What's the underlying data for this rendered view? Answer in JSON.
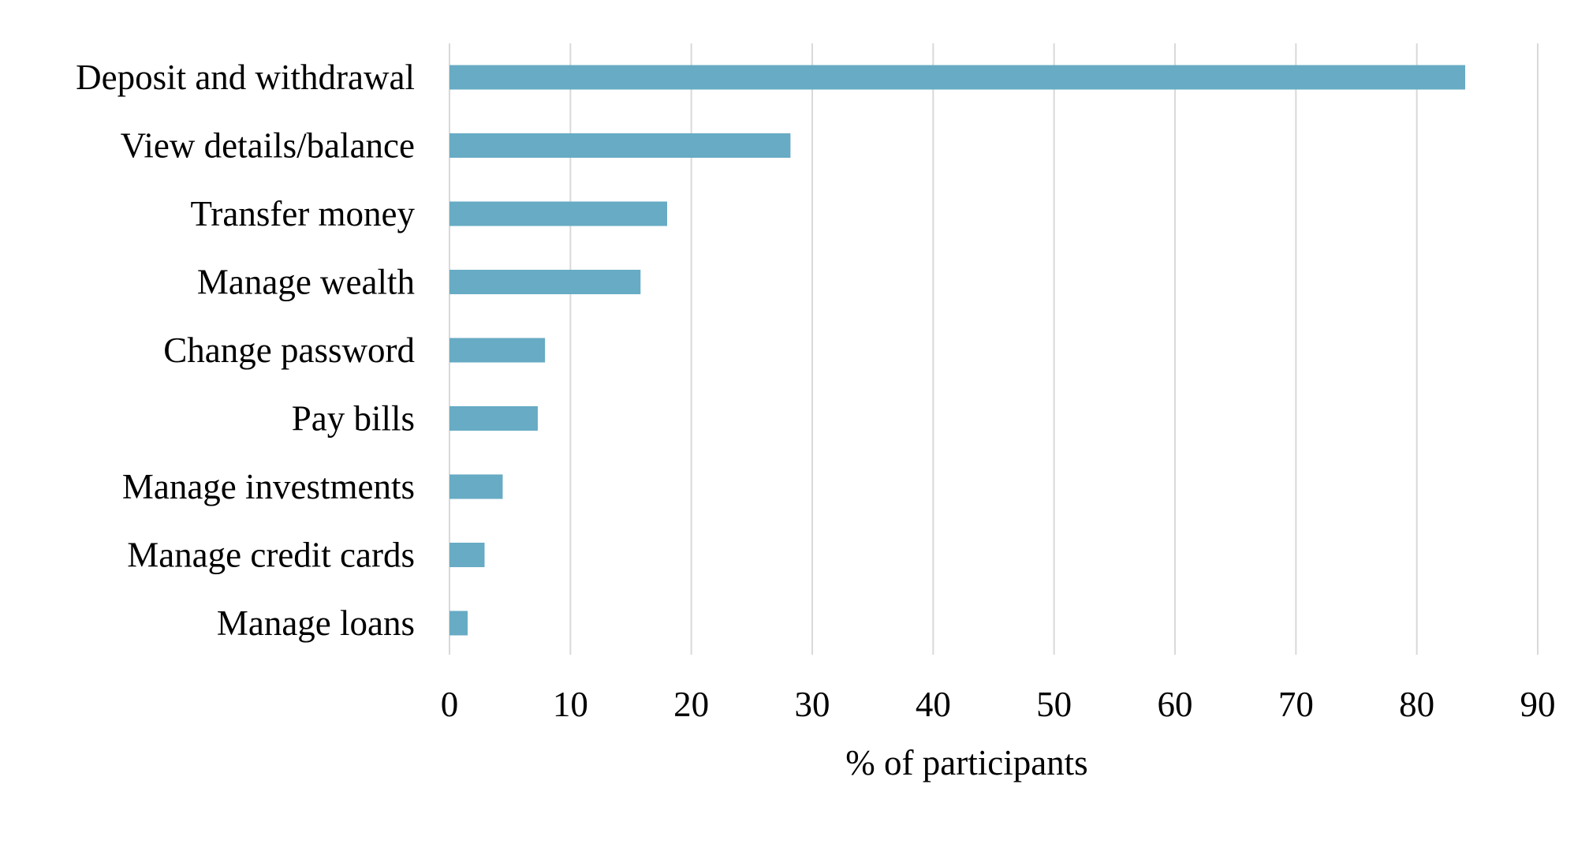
{
  "chart_data": {
    "type": "bar",
    "orientation": "horizontal",
    "categories": [
      "Deposit and withdrawal",
      "View details/balance",
      "Transfer money",
      "Manage wealth",
      "Change password",
      "Pay bills",
      "Manage investments",
      "Manage credit cards",
      "Manage loans"
    ],
    "values": [
      84,
      28.2,
      18,
      15.8,
      7.9,
      7.3,
      4.4,
      2.9,
      1.5
    ],
    "xlabel": "% of participants",
    "ylabel": "",
    "xlim": [
      0,
      90
    ],
    "xticks": [
      "0",
      "10",
      "20",
      "30",
      "40",
      "50",
      "60",
      "70",
      "80",
      "90"
    ],
    "grid": "vertical",
    "legend": "none",
    "bar_color": "#67ABC4",
    "grid_color": "#D9D9D9"
  }
}
